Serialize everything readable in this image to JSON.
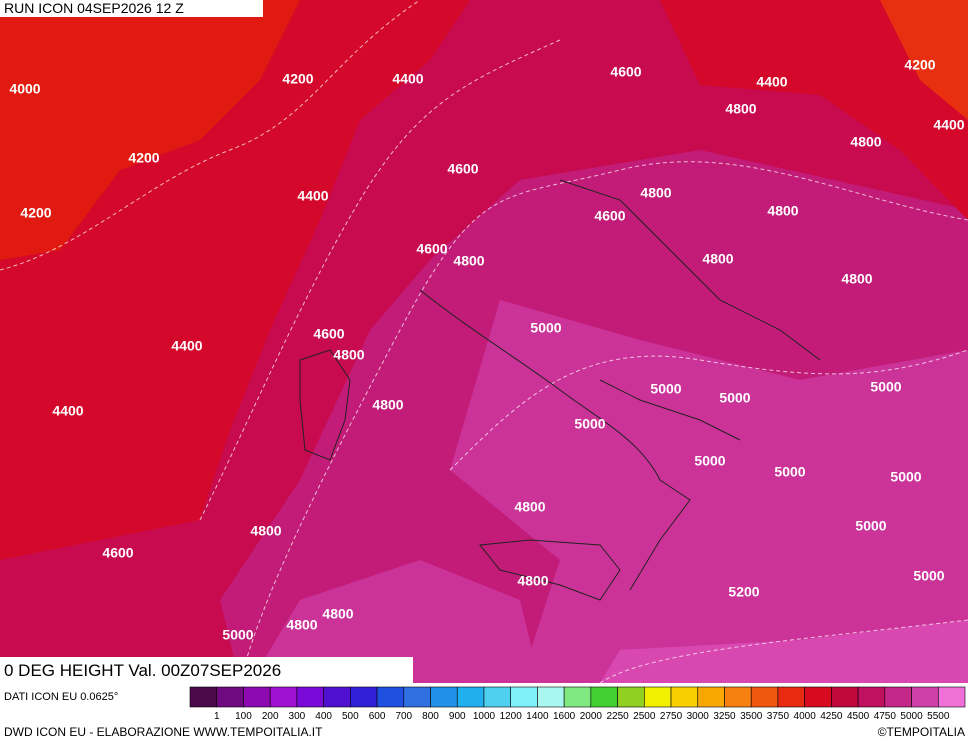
{
  "header": {
    "run": "RUN ICON 04SEP2026 12 Z"
  },
  "map": {
    "field_label": "0 DEG HEIGHT Val. 00Z07SEP2026",
    "contour_labels": [
      "4000",
      "4200",
      "4400",
      "4200",
      "4200",
      "4400",
      "4400",
      "4600",
      "4600",
      "4400",
      "4200",
      "4400",
      "4600",
      "4800",
      "4800",
      "4800",
      "4600",
      "4800",
      "4800",
      "4800",
      "4600",
      "4800",
      "4400",
      "4800",
      "4800",
      "5000",
      "5000",
      "5000",
      "5000",
      "5000",
      "5000",
      "5000",
      "5000",
      "4800",
      "4800",
      "4600",
      "4800",
      "4800",
      "4800",
      "5000",
      "5000",
      "5000",
      "5200"
    ]
  },
  "legend": {
    "labels": [
      "1",
      "100",
      "200",
      "300",
      "400",
      "500",
      "600",
      "700",
      "800",
      "900",
      "1000",
      "1200",
      "1400",
      "1600",
      "2000",
      "2250",
      "2500",
      "2750",
      "3000",
      "3250",
      "3500",
      "3750",
      "4000",
      "4250",
      "4500",
      "4750",
      "5000",
      "5500"
    ],
    "colors": [
      "#4a0a4a",
      "#700a80",
      "#8c0ab0",
      "#a010d0",
      "#7a0ad8",
      "#5010d0",
      "#3020d8",
      "#2050e0",
      "#3070e0",
      "#2090e8",
      "#20b0f0",
      "#50d0f0",
      "#80f0f8",
      "#a8f8f0",
      "#80e880",
      "#40d030",
      "#90d020",
      "#f0f000",
      "#f8d000",
      "#f8a800",
      "#f88010",
      "#f05810",
      "#e82a10",
      "#d80a20",
      "#c0083a",
      "#c01060",
      "#c42888",
      "#d040a8",
      "#f070d8"
    ]
  },
  "footer": {
    "data_source": "DATI ICON EU 0.0625°",
    "credit": "DWD ICON EU - ELABORAZIONE WWW.TEMPOITALIA.IT",
    "copyright": "©TEMPOITALIA"
  }
}
